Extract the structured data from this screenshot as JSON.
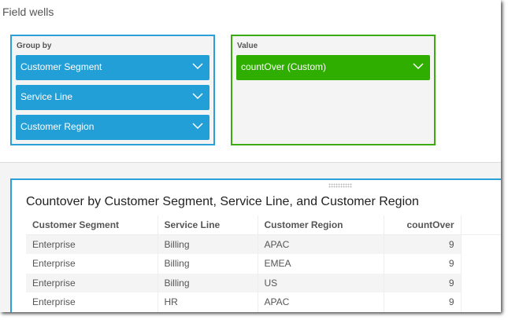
{
  "field_wells": {
    "title": "Field wells",
    "group_by": {
      "label": "Group by",
      "items": [
        {
          "label": "Customer Segment"
        },
        {
          "label": "Service Line"
        },
        {
          "label": "Customer Region"
        }
      ]
    },
    "value": {
      "label": "Value",
      "items": [
        {
          "label": "countOver (Custom)"
        }
      ]
    },
    "colors": {
      "group_by": "#229fd6",
      "value": "#2fae00"
    }
  },
  "visual": {
    "title": "Countover by Customer Segment, Service Line, and Customer Region",
    "columns": [
      "Customer Segment",
      "Service Line",
      "Customer Region",
      "countOver"
    ],
    "rows": [
      [
        "Enterprise",
        "Billing",
        "APAC",
        "9"
      ],
      [
        "Enterprise",
        "Billing",
        "EMEA",
        "9"
      ],
      [
        "Enterprise",
        "Billing",
        "US",
        "9"
      ],
      [
        "Enterprise",
        "HR",
        "APAC",
        "9"
      ]
    ]
  }
}
